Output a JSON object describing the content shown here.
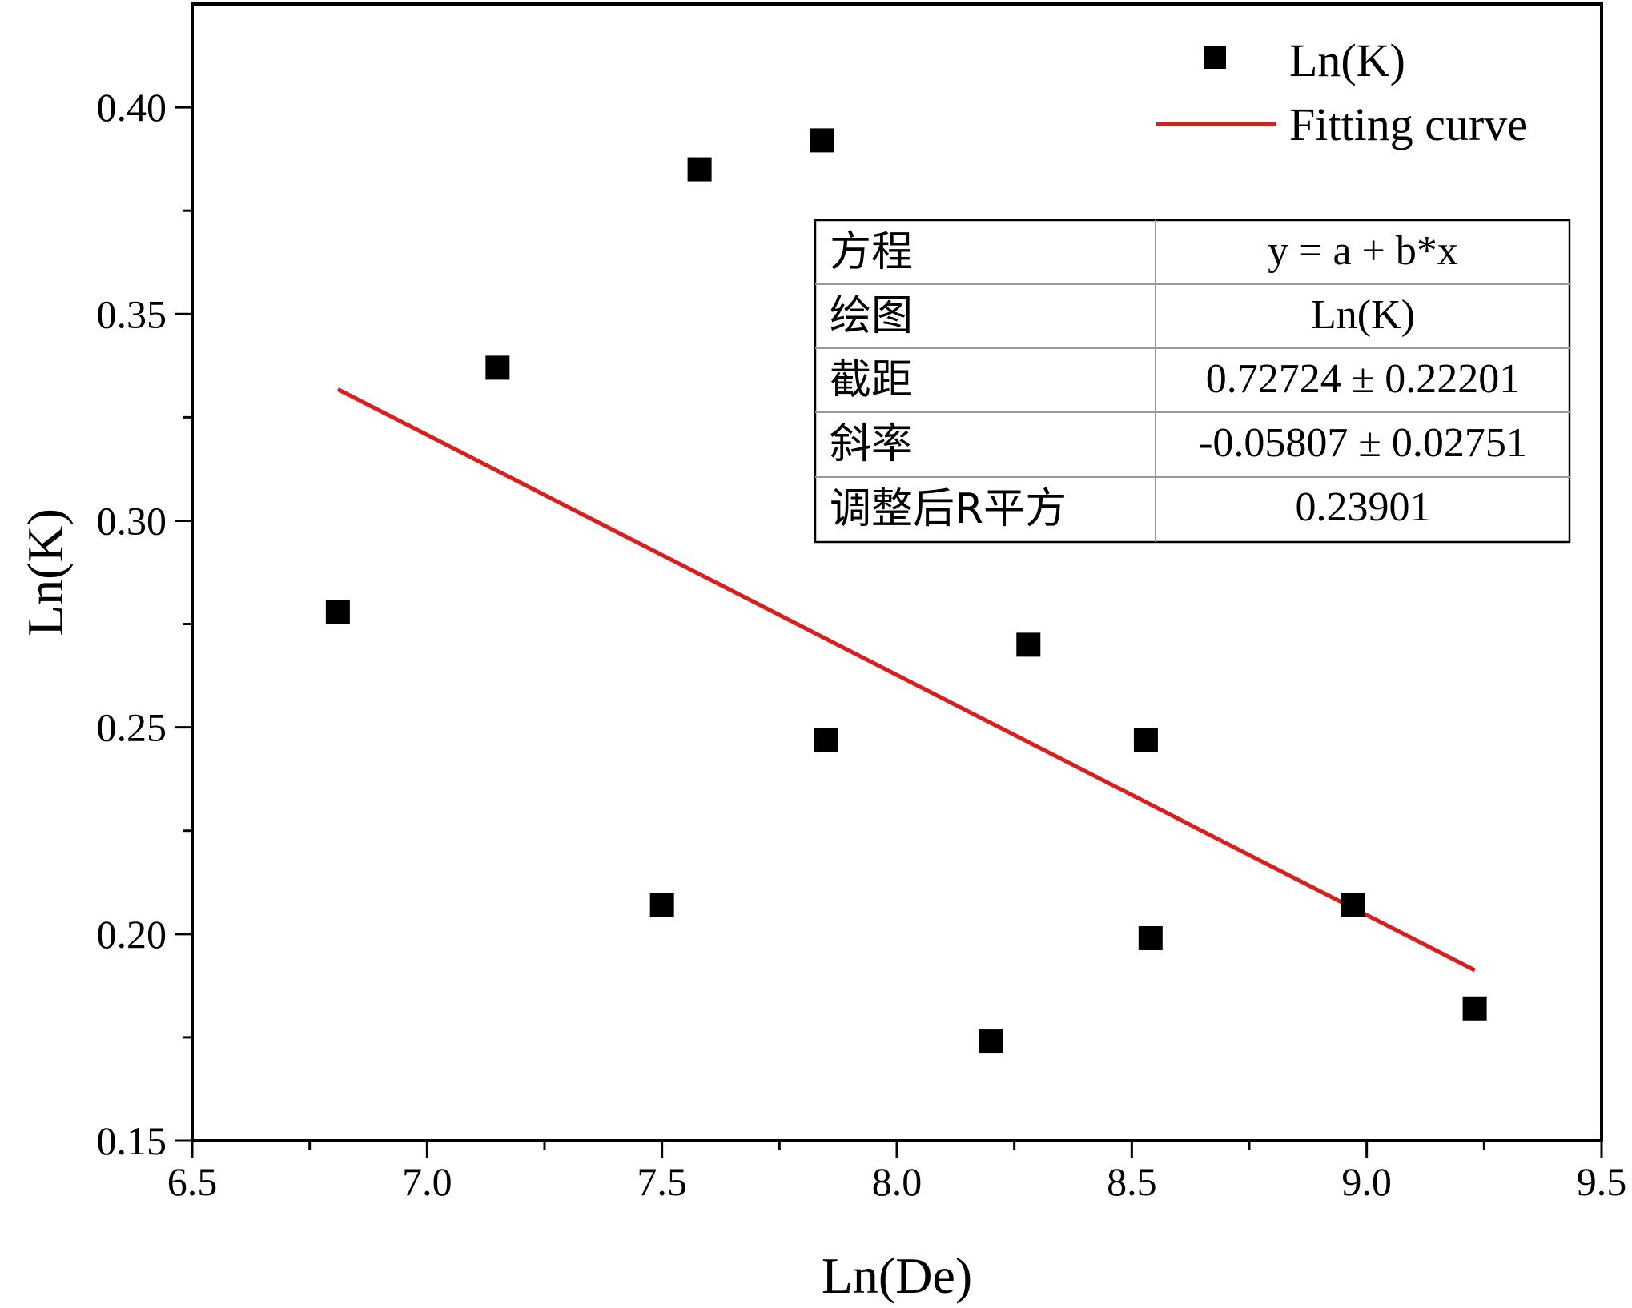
{
  "chart_data": {
    "type": "scatter",
    "xlabel": "Ln(De)",
    "ylabel": "Ln(K)",
    "xlim": [
      6.5,
      9.5
    ],
    "ylim": [
      0.15,
      0.425
    ],
    "xticks": [
      "6.5",
      "7.0",
      "7.5",
      "8.0",
      "8.5",
      "9.0",
      "9.5"
    ],
    "yticks": [
      "0.15",
      "0.20",
      "0.25",
      "0.30",
      "0.35",
      "0.40"
    ],
    "series": [
      {
        "name": "Ln(K)",
        "marker": "square",
        "color": "#000000",
        "points": [
          {
            "x": 6.81,
            "y": 0.278
          },
          {
            "x": 7.15,
            "y": 0.337
          },
          {
            "x": 7.5,
            "y": 0.207
          },
          {
            "x": 7.58,
            "y": 0.385
          },
          {
            "x": 7.84,
            "y": 0.392
          },
          {
            "x": 7.85,
            "y": 0.247
          },
          {
            "x": 8.2,
            "y": 0.174
          },
          {
            "x": 8.28,
            "y": 0.27
          },
          {
            "x": 8.53,
            "y": 0.247
          },
          {
            "x": 8.54,
            "y": 0.199
          },
          {
            "x": 8.97,
            "y": 0.207
          },
          {
            "x": 9.23,
            "y": 0.182
          }
        ]
      },
      {
        "name": "Fitting curve",
        "kind": "line",
        "color": "#e31a1a",
        "intercept": 0.72724,
        "slope": -0.05807,
        "x_range": [
          6.81,
          9.23
        ]
      }
    ],
    "legend_placement": "top-right",
    "grid": false,
    "stats_table": {
      "rows": [
        {
          "label": "方程",
          "value": "y = a + b*x"
        },
        {
          "label": "绘图",
          "value": "Ln(K)"
        },
        {
          "label": "截距",
          "value": "0.72724 ± 0.22201"
        },
        {
          "label": "斜率",
          "value": "-0.05807 ± 0.02751"
        },
        {
          "label": "调整后R平方",
          "value": "0.23901"
        }
      ]
    }
  }
}
